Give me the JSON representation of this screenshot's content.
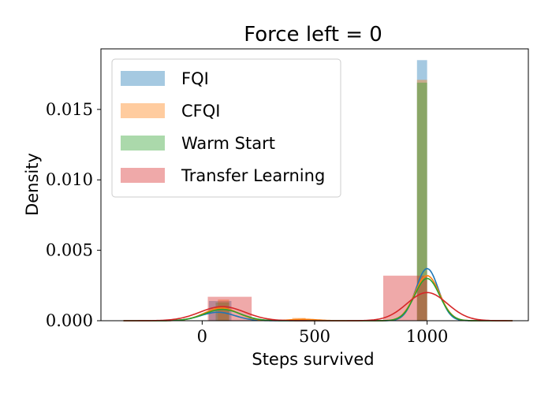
{
  "chart_data": {
    "type": "histogram",
    "title": "Force left = 0",
    "xlabel": "Steps survived",
    "ylabel": "Density",
    "xlim": [
      -450,
      1450
    ],
    "ylim": [
      0,
      0.0193
    ],
    "xticks": [
      0,
      500,
      1000
    ],
    "xtick_labels": [
      "0",
      "500",
      "1000"
    ],
    "yticks": [
      0.0,
      0.005,
      0.01,
      0.015
    ],
    "ytick_labels": [
      "0.000",
      "0.005",
      "0.010",
      "0.015"
    ],
    "grid": false,
    "legend_position": "top-left",
    "series": [
      {
        "name": "FQI",
        "color": "#1f77b4",
        "bars": [
          {
            "x0": 30,
            "x1": 130,
            "y": 0.0014
          },
          {
            "x0": 955,
            "x1": 1000,
            "y": 0.0185
          }
        ],
        "kde": {
          "peaks": [
            [
              70,
              0.0006,
              75
            ],
            [
              1000,
              0.0037,
              50
            ]
          ]
        }
      },
      {
        "name": "CFQI",
        "color": "#ff7f0e",
        "bars": [
          {
            "x0": 70,
            "x1": 120,
            "y": 0.0015
          },
          {
            "x0": 400,
            "x1": 460,
            "y": 0.0002
          },
          {
            "x0": 955,
            "x1": 1000,
            "y": 0.0171
          }
        ],
        "kde": {
          "peaks": [
            [
              85,
              0.0009,
              75
            ],
            [
              450,
              0.0001,
              60
            ],
            [
              1000,
              0.0032,
              55
            ]
          ]
        }
      },
      {
        "name": "Warm Start",
        "color": "#2ca02c",
        "bars": [
          {
            "x0": 60,
            "x1": 120,
            "y": 0.0013
          },
          {
            "x0": 955,
            "x1": 1000,
            "y": 0.0169
          }
        ],
        "kde": {
          "peaks": [
            [
              90,
              0.0008,
              80
            ],
            [
              1000,
              0.003,
              55
            ]
          ]
        }
      },
      {
        "name": "Transfer Learning",
        "color": "#d62728",
        "bars": [
          {
            "x0": 25,
            "x1": 220,
            "y": 0.0017
          },
          {
            "x0": 805,
            "x1": 1000,
            "y": 0.0032
          }
        ],
        "kde": {
          "peaks": [
            [
              90,
              0.001,
              100
            ],
            [
              1000,
              0.002,
              90
            ]
          ]
        }
      }
    ]
  }
}
